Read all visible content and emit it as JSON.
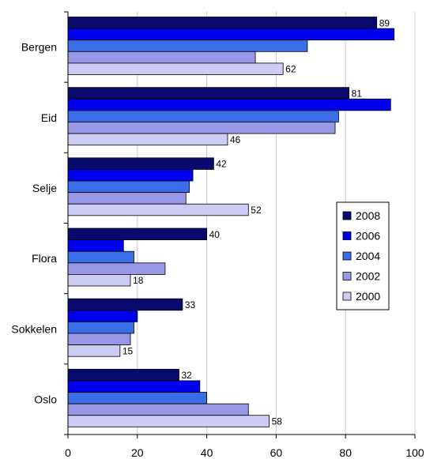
{
  "chart_data": {
    "type": "bar",
    "orientation": "horizontal",
    "categories": [
      "Bergen",
      "Eid",
      "Selje",
      "Flora",
      "Sokkelen",
      "Oslo"
    ],
    "series": [
      {
        "name": "2008",
        "color": "#0a0a6e",
        "values": [
          89,
          81,
          42,
          40,
          33,
          32
        ]
      },
      {
        "name": "2006",
        "color": "#0000ee",
        "values": [
          94,
          93,
          36,
          16,
          20,
          38
        ]
      },
      {
        "name": "2004",
        "color": "#3a6ee8",
        "values": [
          69,
          78,
          35,
          19,
          19,
          40
        ]
      },
      {
        "name": "2002",
        "color": "#9898e6",
        "values": [
          54,
          77,
          34,
          28,
          18,
          52
        ]
      },
      {
        "name": "2000",
        "color": "#ccccf4",
        "values": [
          62,
          46,
          52,
          18,
          15,
          58
        ]
      }
    ],
    "data_labels": [
      {
        "category": "Bergen",
        "series": "2008",
        "text": "89"
      },
      {
        "category": "Bergen",
        "series": "2000",
        "text": "62"
      },
      {
        "category": "Eid",
        "series": "2008",
        "text": "81"
      },
      {
        "category": "Eid",
        "series": "2000",
        "text": "46"
      },
      {
        "category": "Selje",
        "series": "2008",
        "text": "42"
      },
      {
        "category": "Selje",
        "series": "2000",
        "text": "52"
      },
      {
        "category": "Flora",
        "series": "2008",
        "text": "40"
      },
      {
        "category": "Flora",
        "series": "2000",
        "text": "18"
      },
      {
        "category": "Sokkelen",
        "series": "2008",
        "text": "33"
      },
      {
        "category": "Sokkelen",
        "series": "2000",
        "text": "15"
      },
      {
        "category": "Oslo",
        "series": "2008",
        "text": "32"
      },
      {
        "category": "Oslo",
        "series": "2000",
        "text": "58"
      }
    ],
    "xlim": [
      0,
      100
    ],
    "x_ticks": [
      "0",
      "20",
      "40",
      "60",
      "80",
      "100"
    ],
    "grid": true,
    "legend_position": "right",
    "title": "",
    "xlabel": "",
    "ylabel": ""
  }
}
